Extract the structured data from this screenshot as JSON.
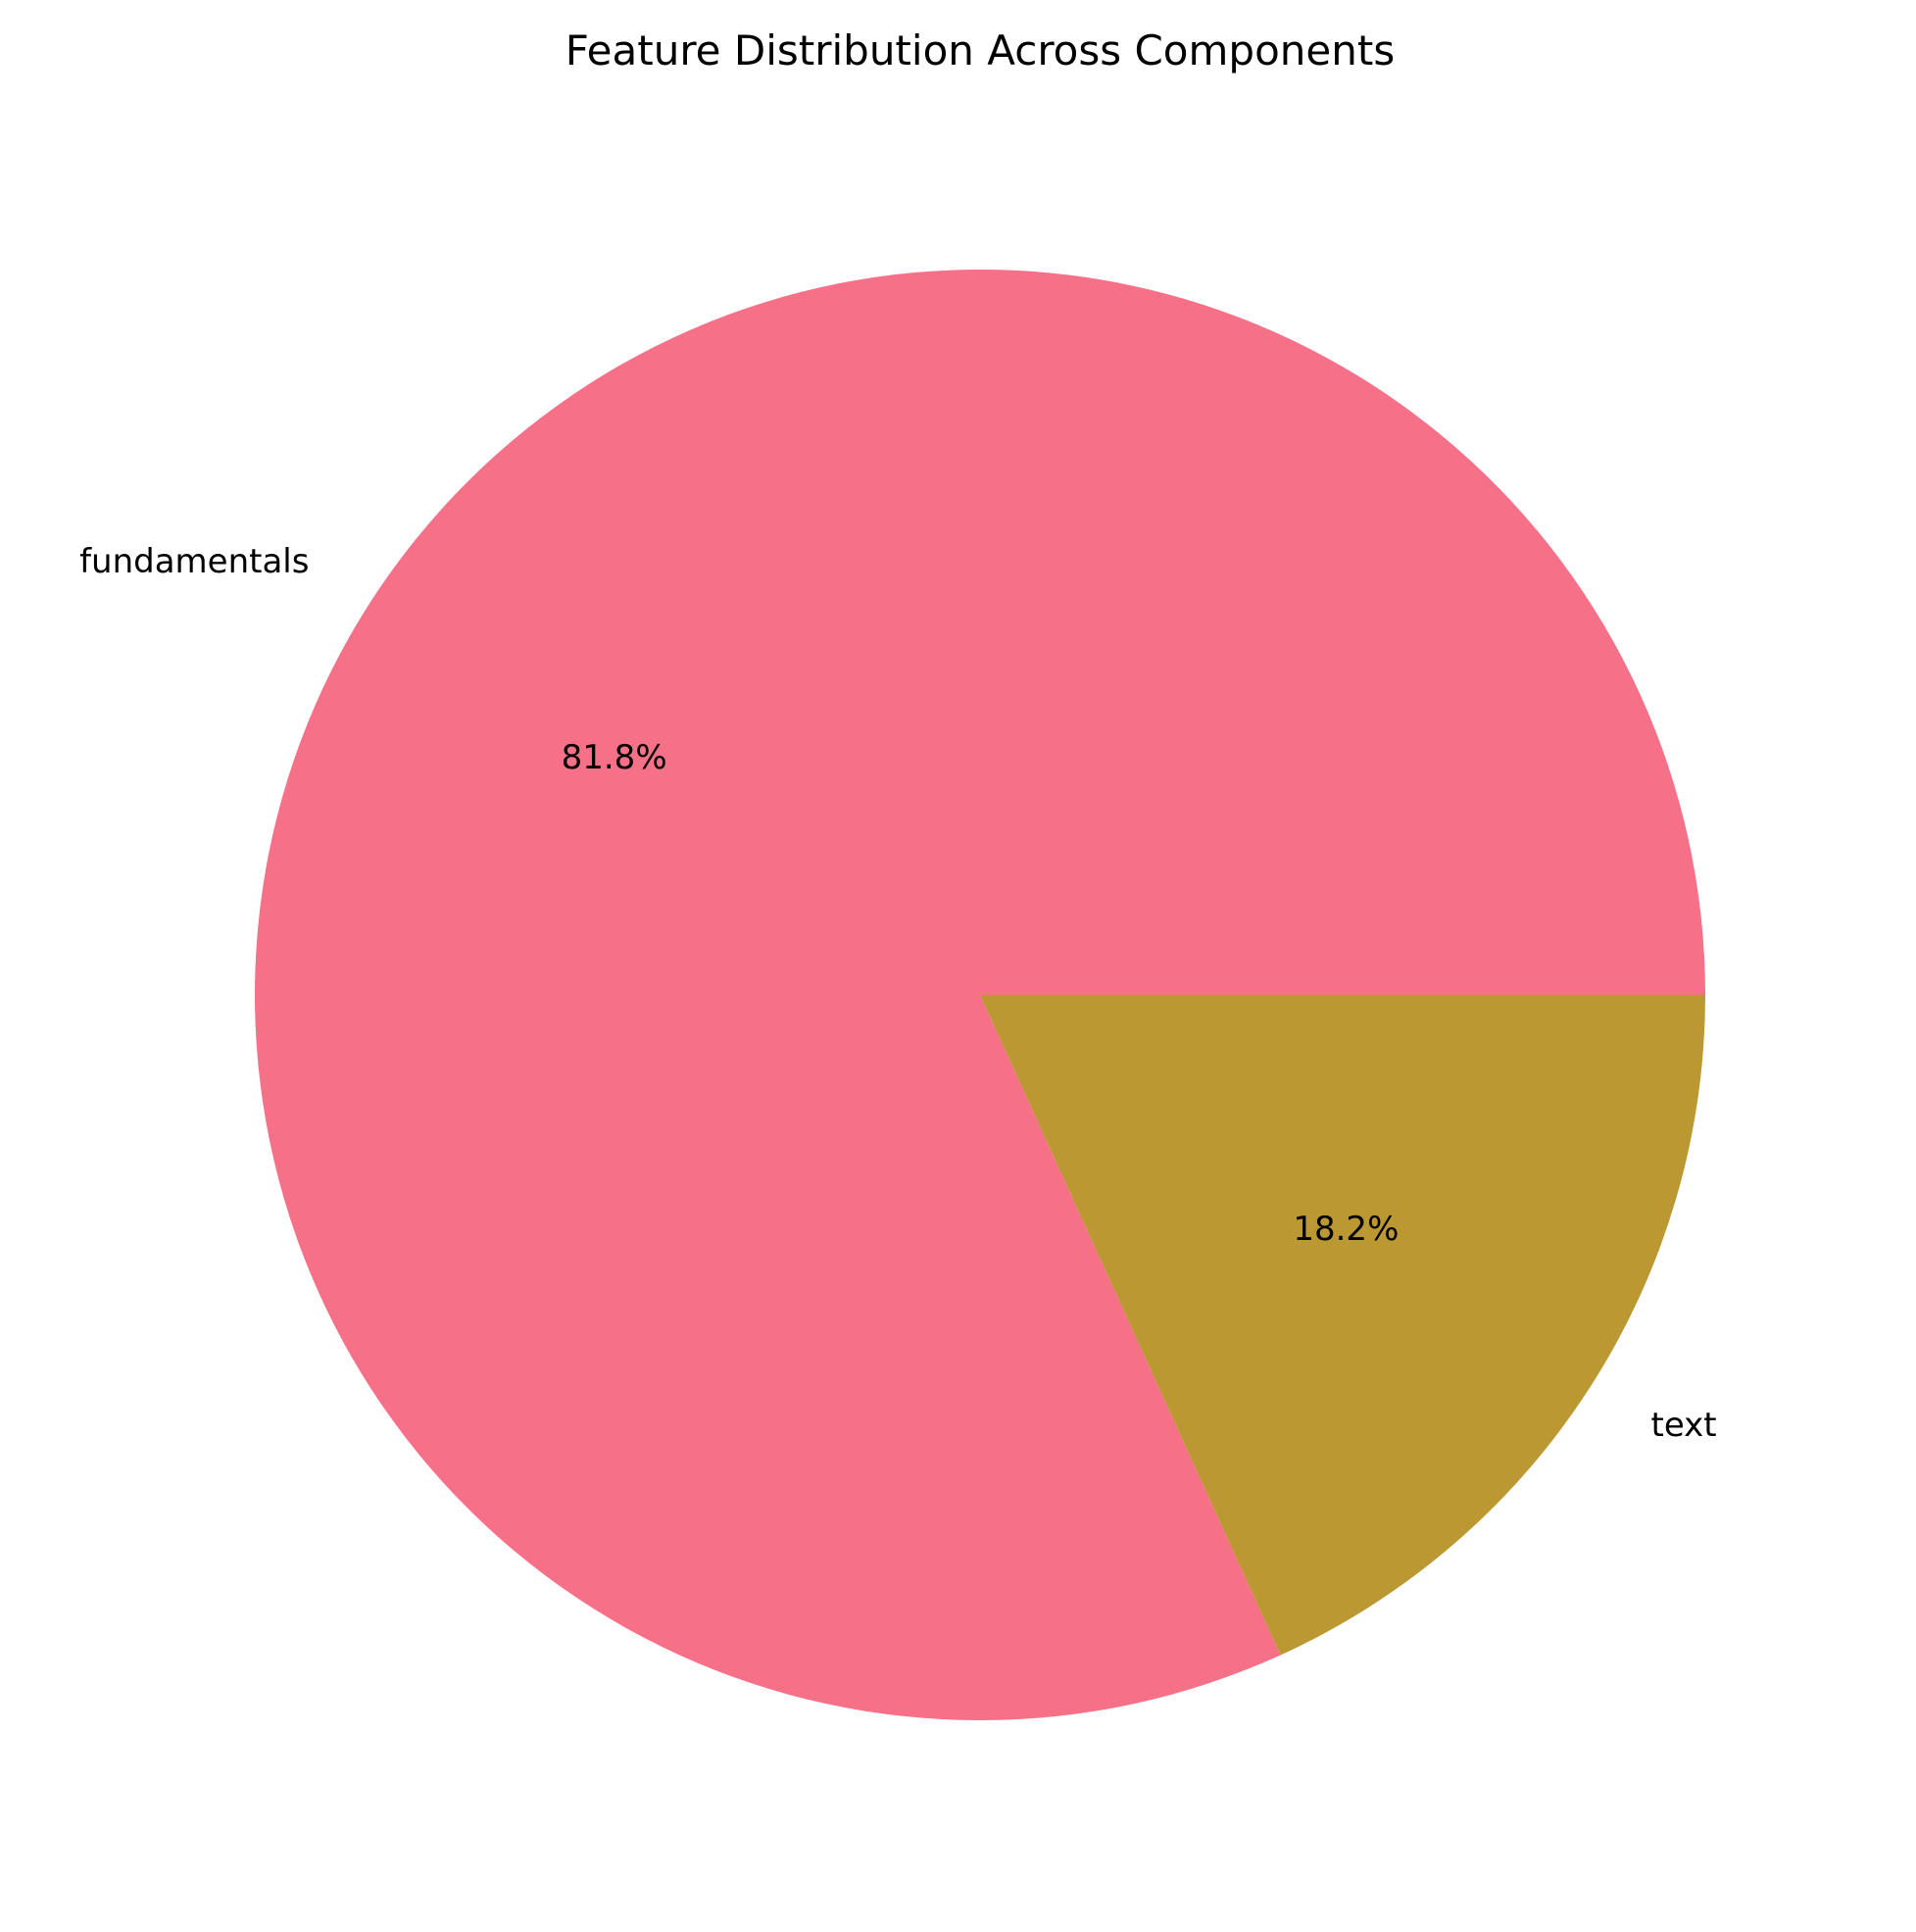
{
  "chart_data": {
    "type": "pie",
    "title": "Feature Distribution Across Components",
    "slices": [
      {
        "label": "fundamentals",
        "value": 81.8,
        "pct_label": "81.8%",
        "color": "#f67088"
      },
      {
        "label": "text",
        "value": 18.2,
        "pct_label": "18.2%",
        "color": "#bb9832"
      }
    ],
    "start_angle_deg": 0,
    "direction": "counterclockwise",
    "legend": "none"
  }
}
